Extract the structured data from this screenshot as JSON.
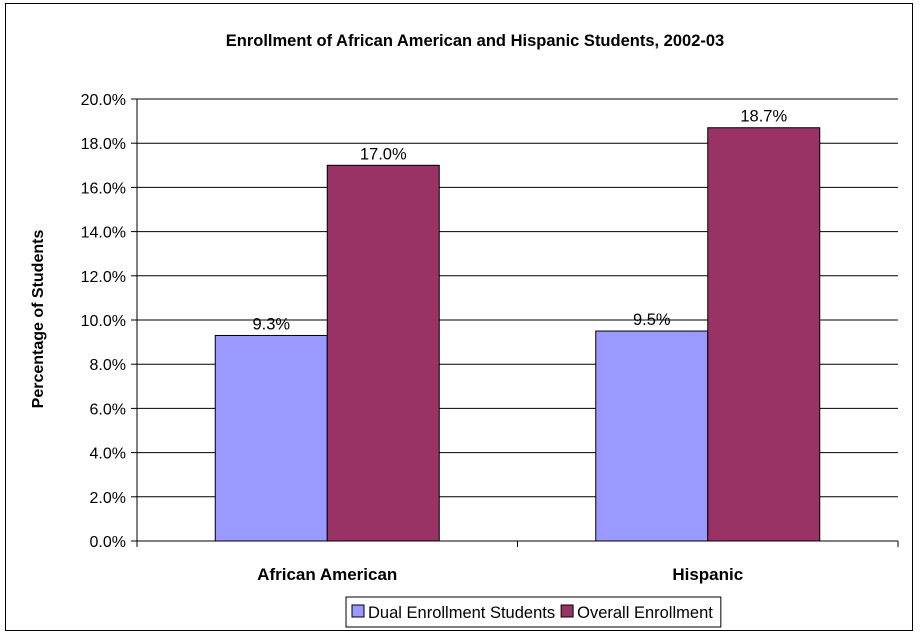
{
  "chart_data": {
    "type": "bar",
    "title": "Enrollment of African American and Hispanic Students, 2002-03",
    "ylabel": "Percentage of Students",
    "xlabel": "",
    "categories": [
      "African American",
      "Hispanic"
    ],
    "series": [
      {
        "name": "Dual Enrollment Students",
        "values": [
          9.3,
          9.5
        ],
        "labels": [
          "9.3%",
          "9.5%"
        ],
        "color": "#9999ff"
      },
      {
        "name": "Overall Enrollment",
        "values": [
          17.0,
          18.7
        ],
        "labels": [
          "17.0%",
          "18.7%"
        ],
        "color": "#993366"
      }
    ],
    "ylim": [
      0,
      20
    ],
    "yticks": [
      "0.0%",
      "2.0%",
      "4.0%",
      "6.0%",
      "8.0%",
      "10.0%",
      "12.0%",
      "14.0%",
      "16.0%",
      "18.0%",
      "20.0%"
    ],
    "grid": true,
    "legend_position": "bottom"
  }
}
